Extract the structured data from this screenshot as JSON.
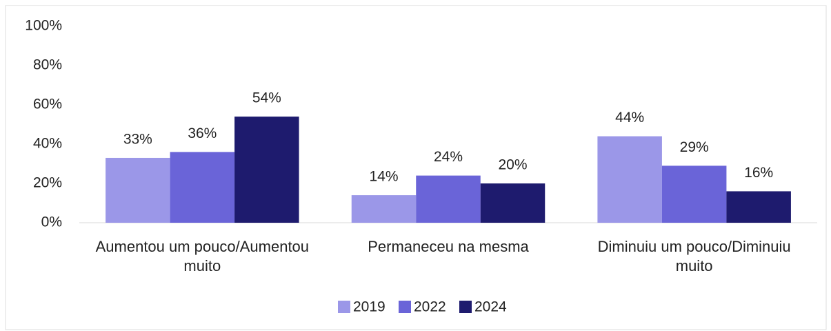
{
  "chart_data": {
    "type": "bar",
    "categories": [
      "Aumentou um pouco/Aumentou muito",
      "Permaneceu na mesma",
      "Diminuiu um pouco/Diminuiu muito"
    ],
    "series": [
      {
        "name": "2019",
        "color": "#9b97e8",
        "values": [
          33,
          14,
          44
        ],
        "value_labels": [
          "33%",
          "14%",
          "44%"
        ]
      },
      {
        "name": "2022",
        "color": "#6a64d8",
        "values": [
          36,
          24,
          29
        ],
        "value_labels": [
          "36%",
          "24%",
          "29%"
        ]
      },
      {
        "name": "2024",
        "color": "#1e1b6e",
        "values": [
          54,
          20,
          16
        ],
        "value_labels": [
          "54%",
          "20%",
          "16%"
        ]
      }
    ],
    "ylim": [
      0,
      100
    ],
    "yticks": [
      {
        "value": 0,
        "label": "0%"
      },
      {
        "value": 20,
        "label": "20%"
      },
      {
        "value": 40,
        "label": "40%"
      },
      {
        "value": 60,
        "label": "60%"
      },
      {
        "value": 80,
        "label": "80%"
      },
      {
        "value": 100,
        "label": "100%"
      }
    ],
    "grid": false,
    "legend": "bottom"
  }
}
